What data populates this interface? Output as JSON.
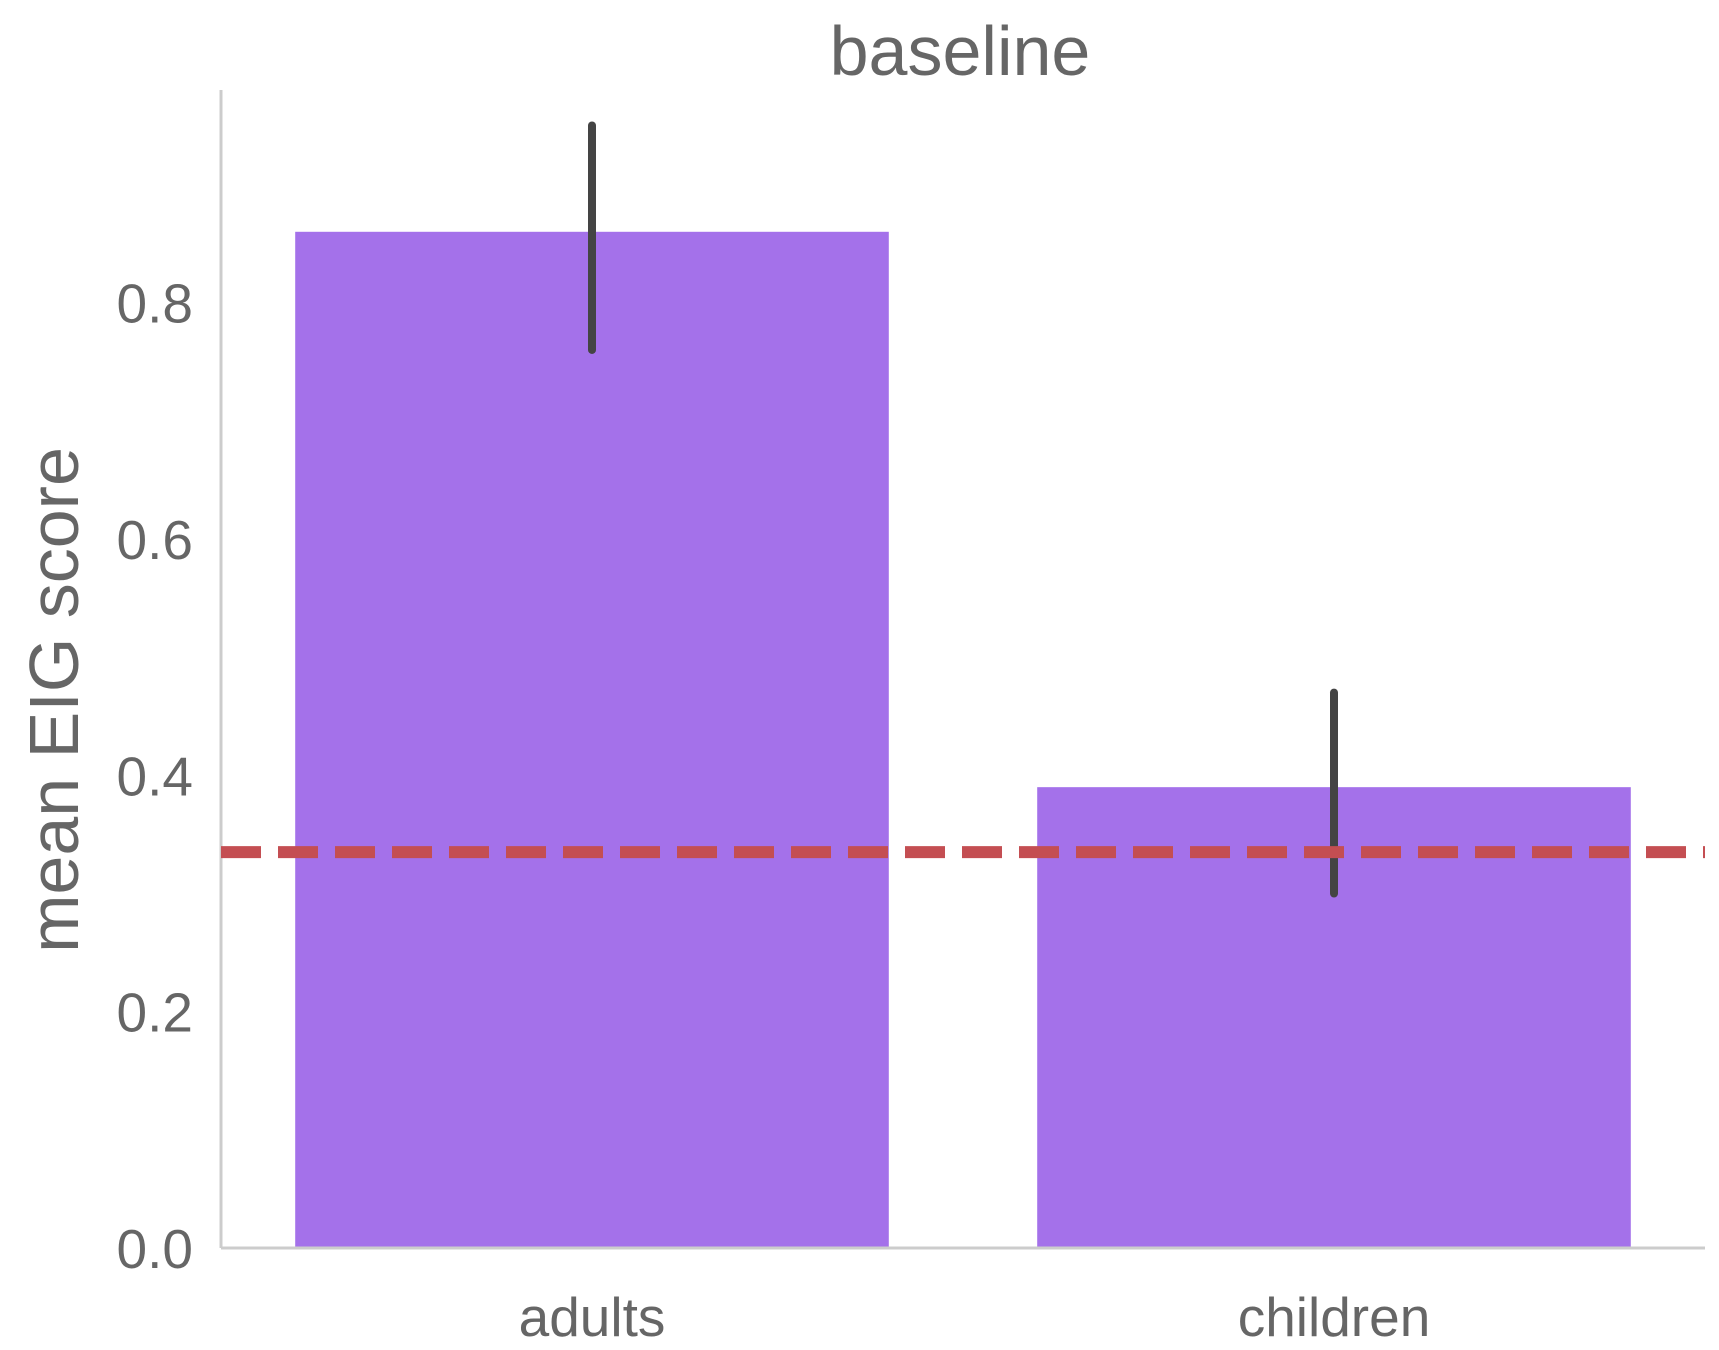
{
  "chart_data": {
    "type": "bar",
    "title": "baseline",
    "xlabel": "",
    "ylabel": "mean EIG score",
    "categories": [
      "adults",
      "children"
    ],
    "values": [
      0.86,
      0.39
    ],
    "error_low": [
      0.76,
      0.3
    ],
    "error_high": [
      0.95,
      0.47
    ],
    "reference_line": 0.335,
    "ylim": [
      0,
      0.98
    ],
    "yticks": [
      "0.0",
      "0.2",
      "0.4",
      "0.6",
      "0.8"
    ],
    "grid": false,
    "legend": "none",
    "colors": {
      "bar": "#A471EA",
      "error_bar": "#444444",
      "reference_line": "#C44E52",
      "axis": "#CCCCCC",
      "text": "#666666"
    }
  }
}
